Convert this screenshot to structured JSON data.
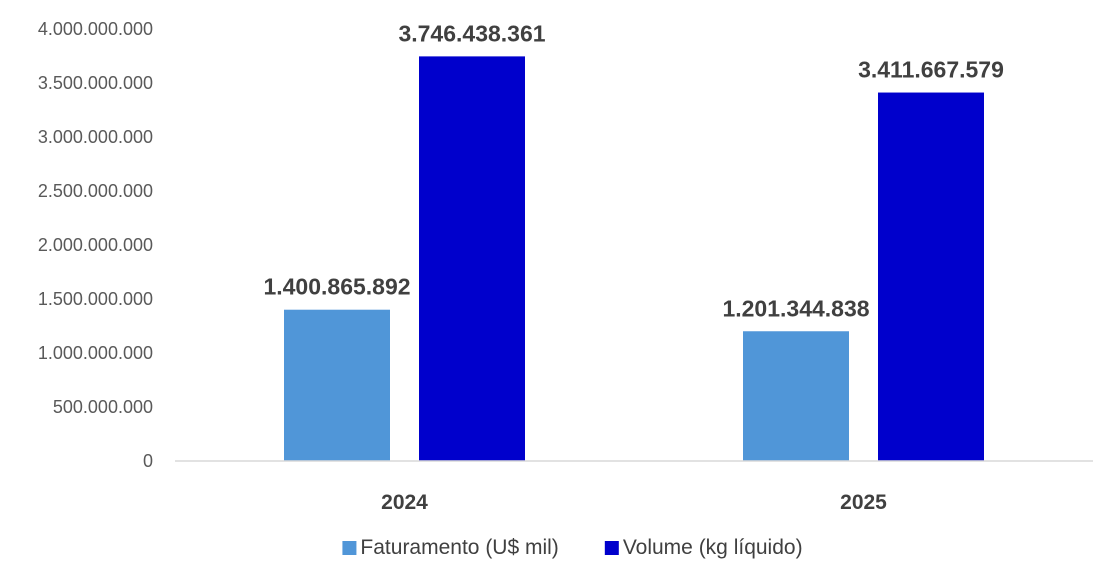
{
  "chart_data": {
    "type": "bar",
    "categories": [
      "2024",
      "2025"
    ],
    "series": [
      {
        "name": "Faturamento  (U$ mil)",
        "color": "#5096d8",
        "values": [
          1400865892,
          1201344838
        ],
        "labels": [
          "1.400.865.892",
          "1.201.344.838"
        ]
      },
      {
        "name": "Volume (kg líquido)",
        "color": "#0000cc",
        "values": [
          3746438361,
          3411667579
        ],
        "labels": [
          "3.746.438.361",
          "3.411.667.579"
        ]
      }
    ],
    "ylim": [
      0,
      4000000000
    ],
    "yticks": [
      0,
      500000000,
      1000000000,
      1500000000,
      2000000000,
      2500000000,
      3000000000,
      3500000000,
      4000000000
    ],
    "ytick_labels": [
      "0",
      "500.000.000",
      "1.000.000.000",
      "1.500.000.000",
      "2.000.000.000",
      "2.500.000.000",
      "3.000.000.000",
      "3.500.000.000",
      "4.000.000.000"
    ],
    "grid": false,
    "legend_position": "bottom",
    "axis_color": "#d9d9d9"
  }
}
